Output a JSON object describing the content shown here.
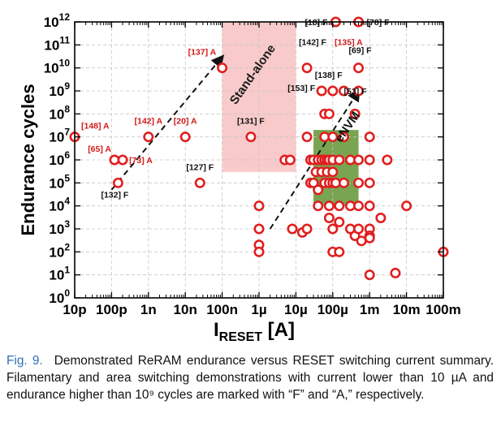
{
  "chart_data": {
    "type": "scatter",
    "title": "",
    "xlabel_main": "I",
    "xlabel_sub": "RESET",
    "xlabel_unit": "[A]",
    "ylabel": "Endurance cycles",
    "xscale": "log",
    "yscale": "log",
    "xlim": [
      1e-11,
      0.1
    ],
    "ylim": [
      1,
      1000000000000.0
    ],
    "grid": true,
    "x_tick_values": [
      1e-11,
      1e-10,
      1e-09,
      1e-08,
      1e-07,
      1e-06,
      1e-05,
      0.0001,
      0.001,
      0.01,
      0.1
    ],
    "x_tick_labels": [
      "10p",
      "100p",
      "1n",
      "10n",
      "100n",
      "1µ",
      "10µ",
      "100µ",
      "1m",
      "10m",
      "100m"
    ],
    "y_tick_exponents": [
      "0",
      "1",
      "2",
      "3",
      "4",
      "5",
      "6",
      "7",
      "8",
      "9",
      "10",
      "11",
      "12"
    ],
    "y_tick_base": "10",
    "colors": {
      "marker_edge": "#e01f1f",
      "marker_fill": "#ffffff",
      "label_red": "#d11a1a",
      "label_black": "#111111",
      "standalone_region": "#f5b8b8",
      "envm_region": "#6a9a3e",
      "arrow": "#111111",
      "grid": "#c6c6c6"
    },
    "regions": [
      {
        "name": "Stand-alone",
        "x": [
          1e-07,
          1e-05
        ],
        "y": [
          300000.0,
          1000000000000.0
        ]
      },
      {
        "name": "eNVM",
        "x": [
          3e-05,
          0.0005
        ],
        "y": [
          10000.0,
          20000000.0
        ]
      }
    ],
    "trend_arrows": [
      {
        "from": [
          1e-10,
          50000.0
        ],
        "to": [
          1e-07,
          30000000000.0
        ]
      },
      {
        "from": [
          2e-06,
          1000.0
        ],
        "to": [
          0.0005,
          1000000000.0
        ]
      }
    ],
    "points": [
      {
        "x": 1e-11,
        "y": 10000000.0
      },
      {
        "x": 1.2e-10,
        "y": 1000000.0
      },
      {
        "x": 2e-10,
        "y": 1000000.0
      },
      {
        "x": 1.5e-10,
        "y": 100000.0
      },
      {
        "x": 1e-09,
        "y": 10000000.0
      },
      {
        "x": 1e-08,
        "y": 10000000.0
      },
      {
        "x": 2.5e-08,
        "y": 100000.0
      },
      {
        "x": 1e-07,
        "y": 10000000000.0
      },
      {
        "x": 6e-07,
        "y": 10000000.0
      },
      {
        "x": 1e-06,
        "y": 10000.0
      },
      {
        "x": 1e-06,
        "y": 1000.0
      },
      {
        "x": 1e-06,
        "y": 200.0
      },
      {
        "x": 1e-06,
        "y": 100.0
      },
      {
        "x": 5e-06,
        "y": 1000000.0
      },
      {
        "x": 7e-06,
        "y": 1000000.0
      },
      {
        "x": 8e-06,
        "y": 1000.0
      },
      {
        "x": 1.5e-05,
        "y": 700.0
      },
      {
        "x": 2e-05,
        "y": 1000.0
      },
      {
        "x": 2e-05,
        "y": 10000000000.0
      },
      {
        "x": 2e-05,
        "y": 10000000.0
      },
      {
        "x": 2.5e-05,
        "y": 1000000.0
      },
      {
        "x": 2.5e-05,
        "y": 100000.0
      },
      {
        "x": 3e-05,
        "y": 1000000.0
      },
      {
        "x": 3e-05,
        "y": 100000.0
      },
      {
        "x": 3.5e-05,
        "y": 300000.0
      },
      {
        "x": 4e-05,
        "y": 1000000.0
      },
      {
        "x": 4e-05,
        "y": 50000.0
      },
      {
        "x": 4e-05,
        "y": 10000.0
      },
      {
        "x": 5e-05,
        "y": 1000000000.0
      },
      {
        "x": 5e-05,
        "y": 1000000.0
      },
      {
        "x": 5e-05,
        "y": 300000.0
      },
      {
        "x": 6e-05,
        "y": 100000000.0
      },
      {
        "x": 6e-05,
        "y": 10000000.0
      },
      {
        "x": 6e-05,
        "y": 1000000.0
      },
      {
        "x": 6e-05,
        "y": 100000.0
      },
      {
        "x": 7e-05,
        "y": 300000.0
      },
      {
        "x": 7e-05,
        "y": 1000000.0
      },
      {
        "x": 8e-05,
        "y": 100000000.0
      },
      {
        "x": 8e-05,
        "y": 1000000.0
      },
      {
        "x": 8e-05,
        "y": 100000.0
      },
      {
        "x": 8e-05,
        "y": 10000.0
      },
      {
        "x": 8e-05,
        "y": 3000.0
      },
      {
        "x": 0.0001,
        "y": 1000000000.0
      },
      {
        "x": 0.0001,
        "y": 10000000.0
      },
      {
        "x": 0.0001,
        "y": 1000000.0
      },
      {
        "x": 0.0001,
        "y": 300000.0
      },
      {
        "x": 0.0001,
        "y": 100000.0
      },
      {
        "x": 0.0001,
        "y": 1000.0
      },
      {
        "x": 0.0001,
        "y": 100.0
      },
      {
        "x": 0.00012,
        "y": 1000000000000.0
      },
      {
        "x": 0.00012,
        "y": 100000.0
      },
      {
        "x": 0.00015,
        "y": 1000000.0
      },
      {
        "x": 0.00015,
        "y": 10000.0
      },
      {
        "x": 0.00015,
        "y": 2000.0
      },
      {
        "x": 0.0002,
        "y": 1000000000.0
      },
      {
        "x": 0.0002,
        "y": 10000000.0
      },
      {
        "x": 0.0002,
        "y": 100000.0
      },
      {
        "x": 0.00015,
        "y": 100.0
      },
      {
        "x": 0.0003,
        "y": 1000000.0
      },
      {
        "x": 0.0003,
        "y": 10000.0
      },
      {
        "x": 0.0003,
        "y": 1000.0
      },
      {
        "x": 0.0004,
        "y": 100000000.0
      },
      {
        "x": 0.0004,
        "y": 500.0
      },
      {
        "x": 0.0005,
        "y": 1000000000000.0
      },
      {
        "x": 0.0005,
        "y": 1000000000.0
      },
      {
        "x": 0.0005,
        "y": 10000000000.0
      },
      {
        "x": 0.0005,
        "y": 1000000.0
      },
      {
        "x": 0.0005,
        "y": 100000.0
      },
      {
        "x": 0.0005,
        "y": 10000.0
      },
      {
        "x": 0.0005,
        "y": 1000.0
      },
      {
        "x": 0.0006,
        "y": 300.0
      },
      {
        "x": 0.001,
        "y": 10000000.0
      },
      {
        "x": 0.001,
        "y": 1000000.0
      },
      {
        "x": 0.001,
        "y": 100000.0
      },
      {
        "x": 0.001,
        "y": 10000.0
      },
      {
        "x": 0.001,
        "y": 1000.0
      },
      {
        "x": 0.001,
        "y": 500.0
      },
      {
        "x": 0.001,
        "y": 400.0
      },
      {
        "x": 0.001,
        "y": 10.0
      },
      {
        "x": 0.002,
        "y": 3000.0
      },
      {
        "x": 0.003,
        "y": 1000000.0
      },
      {
        "x": 0.01,
        "y": 10000.0
      },
      {
        "x": 0.005,
        "y": 12.0
      },
      {
        "x": 0.1,
        "y": 100.0
      }
    ],
    "annotations": [
      {
        "text": "[18] F",
        "color": "black",
        "x": 0.00012,
        "y": 1000000000000.0,
        "anchor": "end",
        "dx": -10,
        "dy": 4
      },
      {
        "text": "[78] F",
        "color": "black",
        "x": 0.0005,
        "y": 1000000000000.0,
        "anchor": "start",
        "dx": 10,
        "dy": 4
      },
      {
        "text": "[142] F",
        "color": "black",
        "x": 2e-05,
        "y": 10000000000.0,
        "anchor": "start",
        "dx": -10,
        "dy": -28
      },
      {
        "text": "[135] A",
        "color": "red",
        "x": 2e-05,
        "y": 10000000000.0,
        "anchor": "start",
        "dx": 34,
        "dy": -28
      },
      {
        "text": "[69] F",
        "color": "black",
        "x": 0.0005,
        "y": 10000000000.0,
        "anchor": "start",
        "dx": -12,
        "dy": -18
      },
      {
        "text": "[137] A",
        "color": "red",
        "x": 1e-07,
        "y": 10000000000.0,
        "anchor": "start",
        "dx": -42,
        "dy": -16
      },
      {
        "text": "[138] F",
        "color": "black",
        "x": 0.0001,
        "y": 1000000000.0,
        "anchor": "start",
        "dx": -22,
        "dy": -16
      },
      {
        "text": "[153] F",
        "color": "black",
        "x": 5e-05,
        "y": 1000000000.0,
        "anchor": "end",
        "dx": -8,
        "dy": 0
      },
      {
        "text": "[53] F",
        "color": "black",
        "x": 0.0005,
        "y": 1000000000.0,
        "anchor": "start",
        "dx": -18,
        "dy": 4
      },
      {
        "text": "[148] A",
        "color": "red",
        "x": 1e-11,
        "y": 10000000.0,
        "anchor": "start",
        "dx": 8,
        "dy": -10
      },
      {
        "text": "[142] A",
        "color": "red",
        "x": 1e-09,
        "y": 10000000.0,
        "anchor": "middle",
        "dx": 0,
        "dy": -16
      },
      {
        "text": "[20] A",
        "color": "red",
        "x": 1e-08,
        "y": 10000000.0,
        "anchor": "middle",
        "dx": 0,
        "dy": -16
      },
      {
        "text": "[131] F",
        "color": "black",
        "x": 6e-07,
        "y": 10000000.0,
        "anchor": "middle",
        "dx": 0,
        "dy": -16
      },
      {
        "text": "[65] A",
        "color": "red",
        "x": 1.2e-10,
        "y": 1000000.0,
        "anchor": "end",
        "dx": -4,
        "dy": -10
      },
      {
        "text": "[73] A",
        "color": "red",
        "x": 2e-10,
        "y": 1000000.0,
        "anchor": "start",
        "dx": 8,
        "dy": 4
      },
      {
        "text": "[127] F",
        "color": "black",
        "x": 2.5e-08,
        "y": 100000.0,
        "anchor": "middle",
        "dx": 0,
        "dy": -16
      },
      {
        "text": "[132] F",
        "color": "black",
        "x": 1.5e-10,
        "y": 100000.0,
        "anchor": "middle",
        "dx": -4,
        "dy": 18
      }
    ],
    "region_labels": [
      {
        "text": "Stand-alone",
        "color": "#1a1a1a"
      },
      {
        "text": "eNVM",
        "color": "#111111"
      }
    ]
  },
  "caption": {
    "figure": "Fig. 9.",
    "text": "Demonstrated ReRAM endurance versus RESET switching current summary. Filamentary and area switching demonstrations with current lower than 10 µA and endurance higher than 10⁹ cycles are marked with “F” and “A,” respectively."
  }
}
